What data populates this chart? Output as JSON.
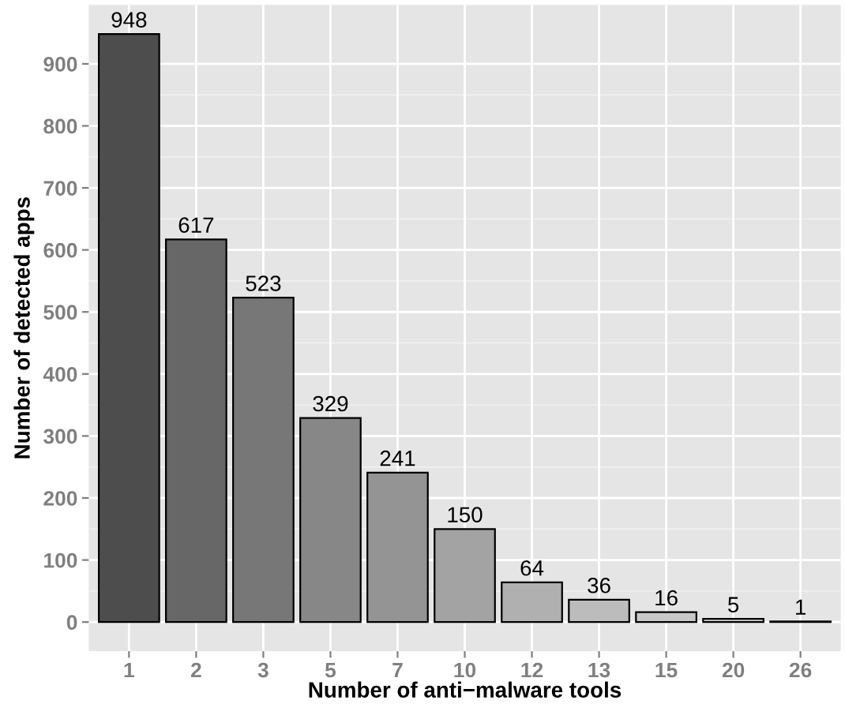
{
  "chart_data": {
    "type": "bar",
    "xlabel": "Number of anti−malware tools",
    "ylabel": "Number of detected apps",
    "categories": [
      "1",
      "2",
      "3",
      "5",
      "7",
      "10",
      "12",
      "13",
      "15",
      "20",
      "26"
    ],
    "values": [
      948,
      617,
      523,
      329,
      241,
      150,
      64,
      36,
      16,
      5,
      1
    ],
    "colors": [
      "#4d4d4d",
      "#676767",
      "#777777",
      "#878787",
      "#949494",
      "#a3a3a3",
      "#b0b0b0",
      "#bcbcbc",
      "#c8c8c8",
      "#d3d3d3",
      "#dedede"
    ],
    "ylim": [
      -47,
      995
    ],
    "yticks": [
      0,
      100,
      200,
      300,
      400,
      500,
      600,
      700,
      800,
      900
    ],
    "grid": true,
    "data_labels": true
  }
}
